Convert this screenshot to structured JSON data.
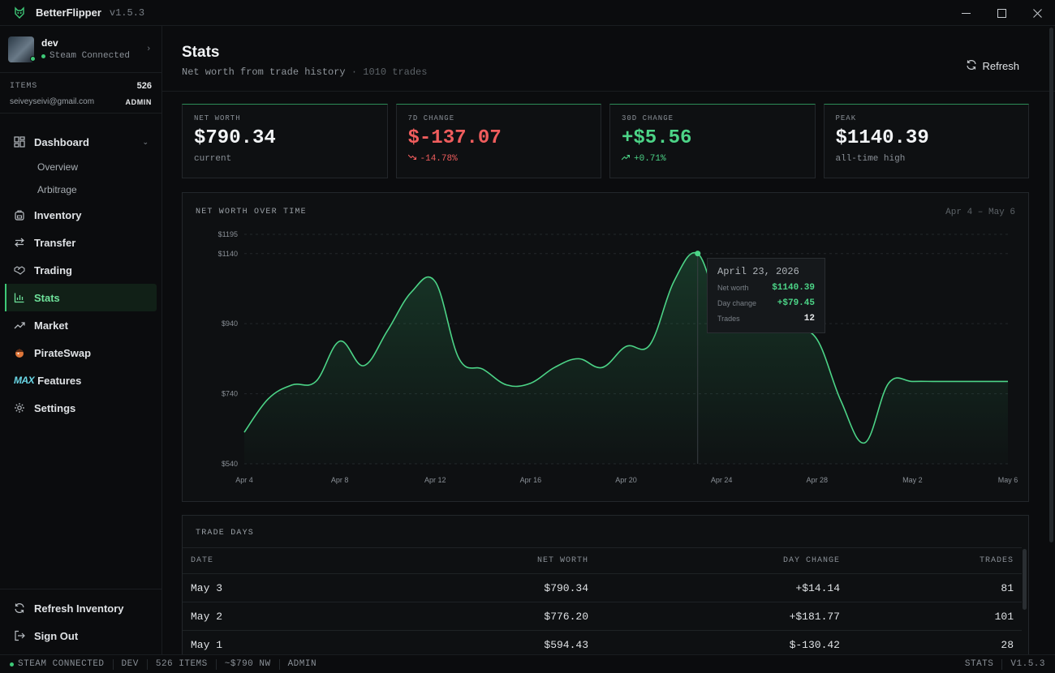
{
  "app": {
    "name": "BetterFlipper",
    "version": "v1.5.3"
  },
  "profile": {
    "username": "dev",
    "status": "Steam Connected"
  },
  "account": {
    "items_label": "ITEMS",
    "items_count": "526",
    "email": "seiveyseivi@gmail.com",
    "role": "ADMIN"
  },
  "nav": {
    "dashboard": "Dashboard",
    "overview": "Overview",
    "arbitrage": "Arbitrage",
    "inventory": "Inventory",
    "transfer": "Transfer",
    "trading": "Trading",
    "stats": "Stats",
    "market": "Market",
    "pirateswap": "PirateSwap",
    "max_badge": "MAX",
    "features": "Features",
    "settings": "Settings",
    "refresh_inventory": "Refresh Inventory",
    "sign_out": "Sign Out"
  },
  "header": {
    "title": "Stats",
    "subtitle": "Net worth from trade history",
    "separator": "·",
    "trades": "1010 trades",
    "refresh": "Refresh"
  },
  "cards": [
    {
      "label": "NET WORTH",
      "value": "$790.34",
      "foot": "current"
    },
    {
      "label": "7D CHANGE",
      "value": "$-137.07",
      "foot": "-14.78%",
      "trend": "down"
    },
    {
      "label": "30D CHANGE",
      "value": "+$5.56",
      "foot": "+0.71%",
      "trend": "up"
    },
    {
      "label": "PEAK",
      "value": "$1140.39",
      "foot": "all-time high"
    }
  ],
  "chart": {
    "title": "NET WORTH OVER TIME",
    "range": "Apr 4 – May 6",
    "tooltip": {
      "date": "April 23, 2026",
      "net_worth_label": "Net worth",
      "net_worth": "$1140.39",
      "day_change_label": "Day change",
      "day_change": "+$79.45",
      "trades_label": "Trades",
      "trades": "12"
    }
  },
  "chart_data": {
    "type": "area",
    "title": "NET WORTH OVER TIME",
    "ylim": [
      540,
      1195
    ],
    "yticks": [
      "$1195",
      "$1140",
      "$940",
      "$740",
      "$540"
    ],
    "ytick_values": [
      1195,
      1140,
      940,
      740,
      540
    ],
    "xticks": [
      "Apr 4",
      "Apr 8",
      "Apr 12",
      "Apr 16",
      "Apr 20",
      "Apr 24",
      "Apr 28",
      "May 2",
      "May 6"
    ],
    "x_day_index": [
      0,
      4,
      8,
      12,
      16,
      20,
      24,
      28,
      32
    ],
    "series": [
      {
        "x": [
          0,
          1,
          2,
          3,
          4,
          5,
          6,
          7,
          8,
          9,
          10,
          11,
          12,
          13,
          14,
          15,
          16,
          17,
          18,
          19,
          20,
          21,
          22,
          23,
          24,
          25,
          26,
          27,
          28,
          29,
          30,
          31,
          32
        ],
        "values": [
          630,
          725,
          765,
          775,
          890,
          820,
          920,
          1030,
          1060,
          840,
          810,
          765,
          770,
          815,
          840,
          815,
          875,
          880,
          1060,
          1140,
          975,
          970,
          970,
          930,
          895,
          720,
          600,
          770,
          775,
          775,
          775,
          775,
          775
        ]
      }
    ],
    "highlight": {
      "x": 19,
      "value": 1140.39,
      "label": "April 23, 2026"
    },
    "grid": true
  },
  "table": {
    "title": "TRADE DAYS",
    "columns": [
      "DATE",
      "NET WORTH",
      "DAY CHANGE",
      "TRADES"
    ],
    "rows": [
      [
        "May 3",
        "$790.34",
        "+$14.14",
        "81"
      ],
      [
        "May 2",
        "$776.20",
        "+$181.77",
        "101"
      ],
      [
        "May 1",
        "$594.43",
        "$-130.42",
        "28"
      ]
    ]
  },
  "statusbar": {
    "steam": "STEAM CONNECTED",
    "user": "DEV",
    "items": "526 ITEMS",
    "nw": "~$790 NW",
    "role": "ADMIN",
    "page": "STATS",
    "version": "V1.5.3"
  },
  "colors": {
    "accent": "#3ec877",
    "negative": "#f05d5d",
    "positive": "#4cd487",
    "background": "#0b0c0e"
  }
}
